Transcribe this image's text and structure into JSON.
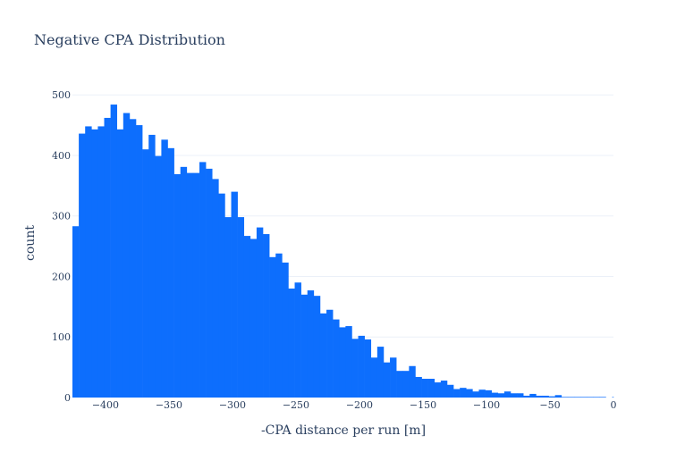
{
  "colors": {
    "bar": "#0d6efd",
    "grid": "#ebf0f8",
    "text": "#2a3f5f"
  },
  "chart_data": {
    "type": "bar",
    "title": "Negative CPA Distribution",
    "xlabel": "-CPA distance per run [m]",
    "ylabel": "count",
    "xlim": [
      -426,
      0
    ],
    "ylim": [
      0,
      530
    ],
    "grid": true,
    "legend": "none",
    "x_ticks": [
      -400,
      -350,
      -300,
      -250,
      -200,
      -150,
      -100,
      -50,
      0
    ],
    "x_tick_labels": [
      "−400",
      "−350",
      "−300",
      "−250",
      "−200",
      "−150",
      "−100",
      "−50",
      "0"
    ],
    "y_ticks": [
      0,
      100,
      200,
      300,
      400,
      500
    ],
    "y_tick_labels": [
      "0",
      "100",
      "200",
      "300",
      "400",
      "500"
    ],
    "bin_start": -426,
    "bin_width": 5,
    "series": [
      {
        "values": [
          283,
          436,
          448,
          443,
          448,
          462,
          484,
          443,
          470,
          460,
          450,
          410,
          434,
          399,
          426,
          412,
          369,
          381,
          371,
          371,
          389,
          378,
          361,
          337,
          298,
          340,
          298,
          267,
          262,
          281,
          270,
          232,
          238,
          223,
          180,
          190,
          170,
          177,
          168,
          139,
          145,
          129,
          116,
          118,
          97,
          102,
          96,
          66,
          84,
          58,
          66,
          44,
          44,
          52,
          34,
          31,
          31,
          25,
          28,
          21,
          14,
          16,
          14,
          10,
          13,
          12,
          8,
          7,
          10,
          7,
          7,
          3,
          6,
          3,
          3,
          2,
          4,
          1,
          1,
          1,
          1,
          1,
          1,
          1,
          0,
          1
        ]
      }
    ]
  }
}
